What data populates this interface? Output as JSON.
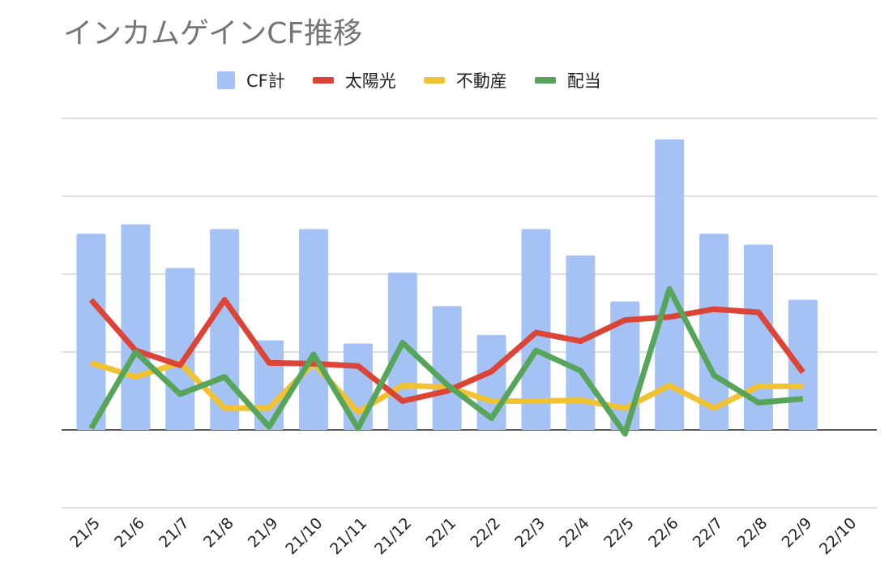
{
  "chart_data": {
    "type": "bar",
    "title": "インカムゲインCF推移",
    "categories": [
      "21/5",
      "21/6",
      "21/7",
      "21/8",
      "21/9",
      "21/10",
      "21/11",
      "21/12",
      "22/1",
      "22/2",
      "22/3",
      "22/4",
      "22/5",
      "22/6",
      "22/7",
      "22/8",
      "22/9",
      "22/10"
    ],
    "ylim": [
      -1,
      4
    ],
    "grid": true,
    "legend_position": "top",
    "series": [
      {
        "name": "CF計",
        "kind": "bar",
        "color": "#a4c2f4",
        "values": [
          2.52,
          2.64,
          2.08,
          2.58,
          1.15,
          2.58,
          1.11,
          2.02,
          1.59,
          1.22,
          2.58,
          2.24,
          1.65,
          3.73,
          2.52,
          2.38,
          1.67,
          null
        ]
      },
      {
        "name": "太陽光",
        "kind": "line",
        "color": "#db4437",
        "values": [
          1.67,
          1.02,
          0.83,
          1.67,
          0.86,
          0.85,
          0.82,
          0.37,
          0.5,
          0.75,
          1.25,
          1.14,
          1.41,
          1.45,
          1.55,
          1.51,
          0.74,
          null
        ]
      },
      {
        "name": "不動産",
        "kind": "line",
        "color": "#f1c232",
        "values": [
          0.86,
          0.68,
          0.86,
          0.28,
          0.28,
          0.86,
          0.23,
          0.57,
          0.55,
          0.37,
          0.37,
          0.38,
          0.28,
          0.57,
          0.28,
          0.56,
          0.56,
          null
        ]
      },
      {
        "name": "配当",
        "kind": "line",
        "color": "#57a55a",
        "values": [
          0.02,
          1.0,
          0.46,
          0.68,
          0.04,
          0.97,
          0.02,
          1.12,
          0.58,
          0.15,
          1.02,
          0.76,
          -0.05,
          1.81,
          0.7,
          0.35,
          0.4,
          null
        ]
      }
    ]
  }
}
